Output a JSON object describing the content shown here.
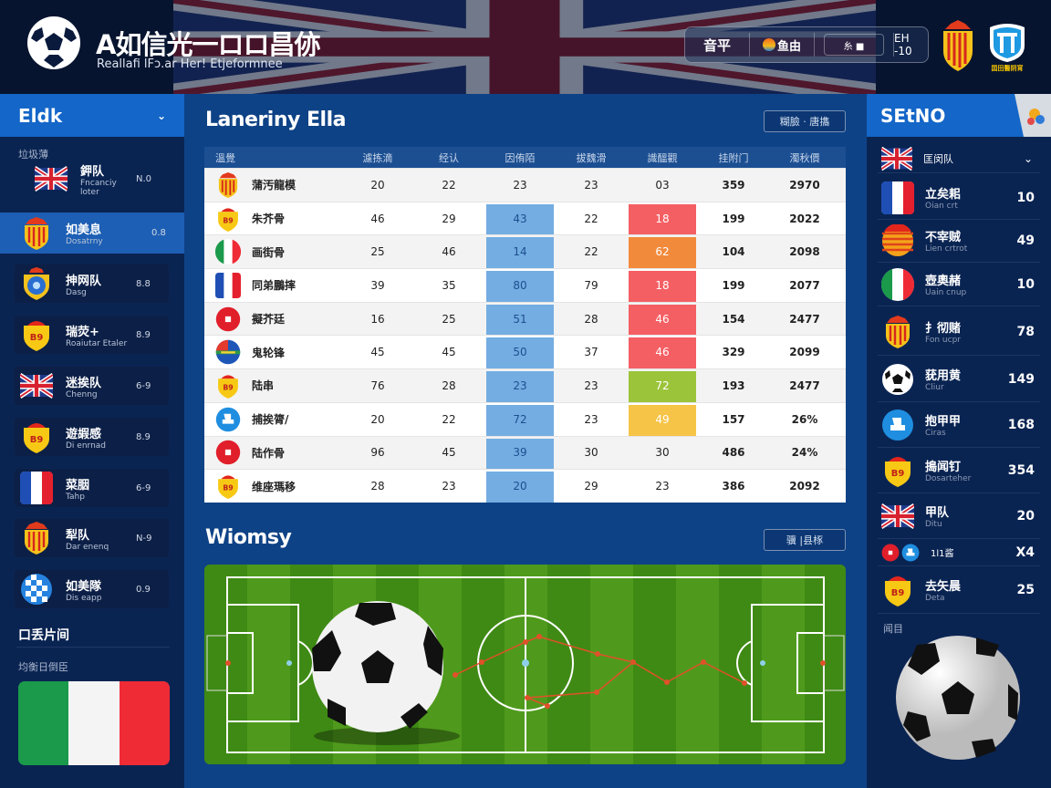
{
  "header": {
    "title": "A如信光一ロロ昌㑊",
    "subtitle": "Realla‌fi lFɔ.ar Her! Etjeformnee",
    "controls": {
      "label": "音平",
      "logo_text": "鱼由",
      "button": "糸 ■",
      "score": "EH -10"
    },
    "badge_text": "囯田醫阴宵"
  },
  "colors": {
    "accent": "#1466c8",
    "panel": "#0a2452",
    "main": "#0e4286",
    "cell_blue": "#74ade2",
    "red": "#f45f63",
    "orange": "#f28a3c",
    "green": "#9cc43a",
    "yellow": "#f6c447"
  },
  "left": {
    "title": "Eldk",
    "section_label": "垃圾薄",
    "items": [
      {
        "icon": "uk-flag",
        "name": "鉀队",
        "sub": "Fncanciy loter",
        "value": "N.0"
      },
      {
        "icon": "spain-crest",
        "name": "如美息",
        "sub": "Dosatrny",
        "value": "0.8",
        "selected": true
      },
      {
        "icon": "blue-crest",
        "name": "抻网队",
        "sub": "Dasg",
        "value": "8.8"
      },
      {
        "icon": "yellow-crest",
        "name": "瑞荧+",
        "sub": "Roaiutar Etaler",
        "value": "8.9"
      },
      {
        "icon": "uk-flag",
        "name": "迷挨队",
        "sub": "Chenng",
        "value": "6-9"
      },
      {
        "icon": "yellow-crest",
        "name": "遊嘏感",
        "sub": "Di enrnad",
        "value": "8.9"
      },
      {
        "icon": "france-flag",
        "name": "菜胭",
        "sub": "Tahp",
        "value": "6-9"
      },
      {
        "icon": "spain-crest",
        "name": "犁队",
        "sub": "Dar enenq",
        "value": "N-9"
      },
      {
        "icon": "checker-crest",
        "name": "如美隊",
        "sub": "Dis eapp",
        "value": "0.9"
      }
    ],
    "section2_title": "口丢片间",
    "section2_label": "均衡日倒臣",
    "section2_flag": "italy-flag"
  },
  "main": {
    "table_title": "Laneriny Ella",
    "table_button": "糊臉 · 唐㩦",
    "columns": [
      "溫覺",
      "濾拣滴",
      "经认",
      "因侑陌",
      "拔魏滑",
      "識醞觀",
      "挂附门",
      "濁秋價"
    ],
    "rows": [
      {
        "icon": "spain-crest",
        "team": "蒲汚龍模",
        "v": [
          "20",
          "22",
          "23",
          "23",
          "03",
          "359",
          "2970"
        ],
        "c3": "",
        "c5": ""
      },
      {
        "icon": "yellow-crest",
        "team": "朱芥骨",
        "v": [
          "46",
          "29",
          "43",
          "22",
          "18",
          "199",
          "2022"
        ],
        "c3": "blue",
        "c5": "red"
      },
      {
        "icon": "italy-flag",
        "team": "画街骨",
        "v": [
          "25",
          "46",
          "14",
          "22",
          "62",
          "104",
          "2098"
        ],
        "c3": "blue",
        "c5": "orange"
      },
      {
        "icon": "france-flag",
        "team": "同弟鵬摔",
        "v": [
          "39",
          "35",
          "80",
          "79",
          "18",
          "199",
          "2077"
        ],
        "c3": "blue",
        "c5": "red"
      },
      {
        "icon": "red-circle",
        "team": "擬芥廷",
        "v": [
          "16",
          "25",
          "51",
          "28",
          "46",
          "154",
          "2477"
        ],
        "c3": "blue",
        "c5": "red"
      },
      {
        "icon": "multi-circle",
        "team": "鬼轮锋",
        "v": [
          "45",
          "45",
          "50",
          "37",
          "46",
          "329",
          "2099"
        ],
        "c3": "blue",
        "c5": "red"
      },
      {
        "icon": "yellow-crest",
        "team": "陆串",
        "v": [
          "76",
          "28",
          "23",
          "23",
          "72",
          "193",
          "2477"
        ],
        "c3": "blue",
        "c5": "green"
      },
      {
        "icon": "blue-white-crest",
        "team": "捕挨膂/",
        "v": [
          "20",
          "22",
          "72",
          "23",
          "49",
          "157",
          "26%"
        ],
        "c3": "blue",
        "c5": "yellow"
      },
      {
        "icon": "red-circle",
        "team": "陆作骨",
        "v": [
          "96",
          "45",
          "39",
          "30",
          "30",
          "486",
          "24%"
        ],
        "c3": "blue",
        "c5": ""
      },
      {
        "icon": "yellow-crest",
        "team": "维座瑪移",
        "v": [
          "28",
          "23",
          "20",
          "29",
          "23",
          "386",
          "2092"
        ],
        "c3": "blue",
        "c5": ""
      }
    ],
    "pitch_title": "Wiomsy",
    "pitch_button": "骥 |县㭬"
  },
  "right": {
    "title": "SEtNO",
    "dropdown": {
      "icon": "uk-flag",
      "label": "匡闵队"
    },
    "items": [
      {
        "icon": "france-flag",
        "name": "立矣耜",
        "sub": "Oian crt",
        "value": "10"
      },
      {
        "icon": "orange-stripes",
        "name": "不宰贼",
        "sub": "Lien crtrot",
        "value": "49"
      },
      {
        "icon": "italy-flag",
        "name": "壺奧赭",
        "sub": "Uain cnup",
        "value": "10"
      },
      {
        "icon": "spain-crest",
        "name": "扌彻赌",
        "sub": "Fon ucpr",
        "value": "78"
      },
      {
        "icon": "ball",
        "name": "莸用黄",
        "sub": "Cliur",
        "value": "149"
      },
      {
        "icon": "blue-white-crest",
        "name": "抱甲甲",
        "sub": "Ciras",
        "value": "168"
      },
      {
        "icon": "yellow-crest",
        "name": "搗闻钉",
        "sub": "Dosarteher",
        "value": "354"
      },
      {
        "icon": "uk-flag",
        "name": "甲队",
        "sub": "Ditu",
        "value": "20"
      },
      {
        "icon": "red-circle",
        "name": "1l1酱",
        "sub": "",
        "value": "X4"
      },
      {
        "icon": "yellow-crest",
        "name": "去矢晨",
        "sub": "Deta",
        "value": "25"
      }
    ],
    "bottom_label": "闻目"
  }
}
